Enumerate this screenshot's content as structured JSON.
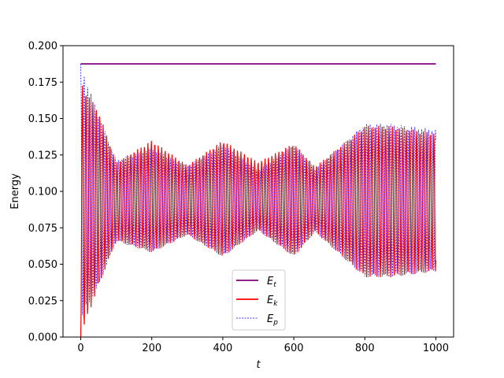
{
  "chart_data": {
    "type": "line",
    "title": "",
    "xlabel": "t",
    "ylabel": "Energy",
    "xlim": [
      -50,
      1050
    ],
    "ylim": [
      0.0,
      0.2
    ],
    "xticks": [
      0,
      200,
      400,
      600,
      800,
      1000
    ],
    "yticks": [
      0.0,
      0.025,
      0.05,
      0.075,
      0.1,
      0.125,
      0.15,
      0.175,
      0.2
    ],
    "xtick_labels": [
      "0",
      "200",
      "400",
      "600",
      "800",
      "1000"
    ],
    "ytick_labels": [
      "0.000",
      "0.025",
      "0.050",
      "0.075",
      "0.100",
      "0.125",
      "0.150",
      "0.175",
      "0.200"
    ],
    "grid": false,
    "legend_position": "lower-center",
    "series": [
      {
        "name": "E_t",
        "legend_main": "E",
        "legend_sub": "t",
        "color": "#800080",
        "style": "solid",
        "x": [
          0,
          1000
        ],
        "y": [
          0.1875,
          0.1875
        ]
      },
      {
        "name": "E_k",
        "legend_main": "E",
        "legend_sub": "k",
        "color": "#ff0000",
        "style": "solid",
        "x": [
          0,
          50,
          100,
          200,
          300,
          400,
          500,
          600,
          660,
          800,
          870,
          1000
        ],
        "y_upper": [
          0.175,
          0.155,
          0.12,
          0.135,
          0.118,
          0.135,
          0.12,
          0.133,
          0.117,
          0.145,
          0.145,
          0.14
        ],
        "y_lower": [
          0.0,
          0.035,
          0.066,
          0.058,
          0.07,
          0.055,
          0.073,
          0.055,
          0.072,
          0.041,
          0.041,
          0.045
        ]
      },
      {
        "name": "E_p",
        "legend_main": "E",
        "legend_sub": "p",
        "color": "#0000ff",
        "style": "dashed",
        "x": [
          0,
          50,
          100,
          200,
          300,
          400,
          500,
          600,
          660,
          800,
          870,
          1000
        ],
        "y_upper": [
          0.1875,
          0.1525,
          0.1215,
          0.1295,
          0.1175,
          0.1325,
          0.1145,
          0.1325,
          0.1155,
          0.1465,
          0.1465,
          0.1425
        ],
        "y_lower": [
          0.0125,
          0.0345,
          0.0655,
          0.058,
          0.07,
          0.055,
          0.073,
          0.055,
          0.072,
          0.041,
          0.041,
          0.045
        ]
      }
    ]
  }
}
